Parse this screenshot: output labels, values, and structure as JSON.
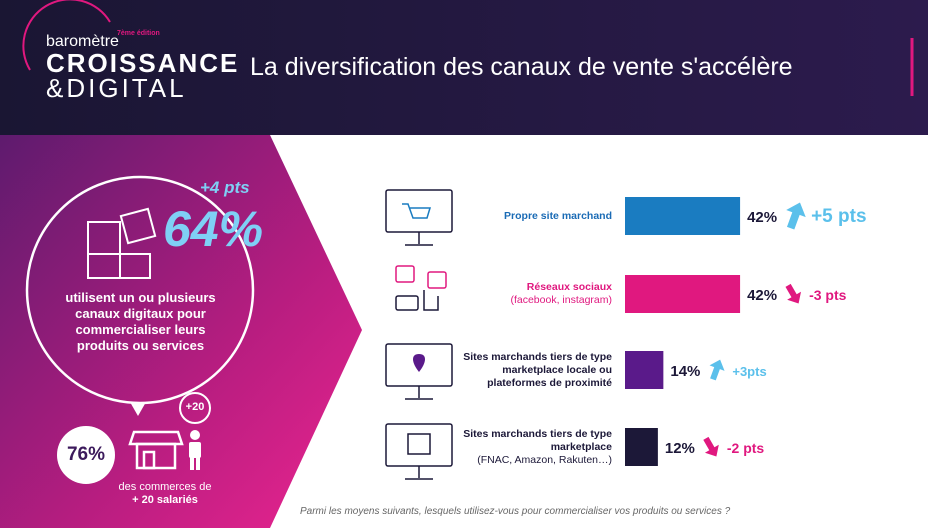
{
  "header": {
    "brand_small": "baromètre",
    "edition": "7ème édition",
    "brand_1": "CROISSANCE",
    "brand_2": "&DIGITAL",
    "title": "La diversification des canaux de vente s'accélère"
  },
  "left": {
    "change": "+4 pts",
    "percent": "64%",
    "text": "utilisent un ou plusieurs canaux digitaux pour commercialiser leurs produits ou services",
    "badge": "+20",
    "percent2": "76%",
    "caption_1": "des commerces de",
    "caption_2": "+ 20 salariés"
  },
  "chart_data": {
    "type": "bar",
    "orientation": "horizontal",
    "categories": [
      "Propre site marchand",
      "Réseaux sociaux",
      "Sites marchands tiers de type marketplace locale ou plateformes de proximité",
      "Sites marchands tiers de type marketplace"
    ],
    "category_notes": [
      null,
      "(facebook, instagram)",
      null,
      "(FNAC, Amazon, Rakuten…)"
    ],
    "values": [
      42,
      42,
      14,
      12
    ],
    "value_labels": [
      "42%",
      "42%",
      "14%",
      "12%"
    ],
    "colors": [
      "#1a7cc1",
      "#e0187f",
      "#5a1a8a",
      "#1c1838"
    ],
    "label_colors": [
      "#1a6bb5",
      "#e0187f",
      "#1c1838",
      "#1c1838"
    ],
    "changes": [
      5,
      -3,
      3,
      -2
    ],
    "change_labels": [
      "+5 pts",
      "-3 pts",
      "+3pts",
      "-2 pts"
    ],
    "change_colors": [
      "#5bc0eb",
      "#e0187f",
      "#5bc0eb",
      "#e0187f"
    ]
  },
  "footnote": "Parmi les moyens suivants, lesquels utilisez-vous pour commercialiser vos produits ou services ?"
}
